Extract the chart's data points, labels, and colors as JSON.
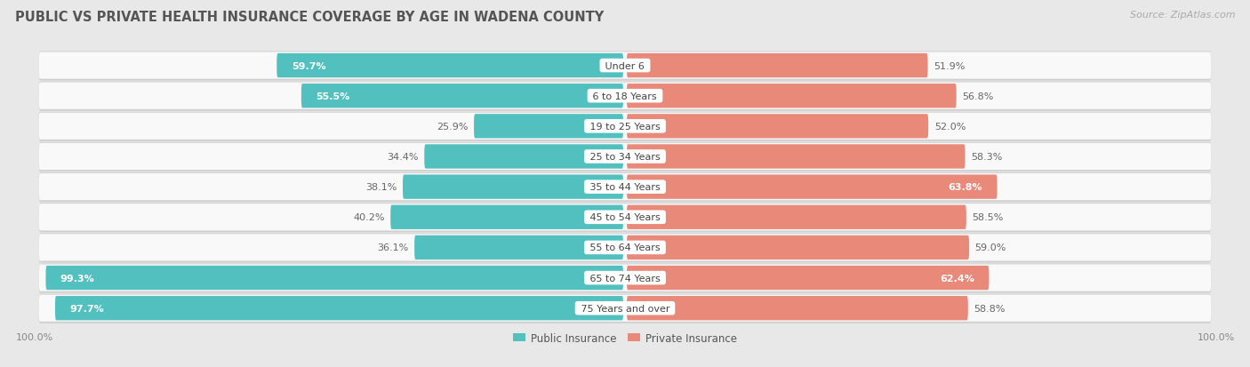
{
  "title": "PUBLIC VS PRIVATE HEALTH INSURANCE COVERAGE BY AGE IN WADENA COUNTY",
  "source": "Source: ZipAtlas.com",
  "categories": [
    "Under 6",
    "6 to 18 Years",
    "19 to 25 Years",
    "25 to 34 Years",
    "35 to 44 Years",
    "45 to 54 Years",
    "55 to 64 Years",
    "65 to 74 Years",
    "75 Years and over"
  ],
  "public_values": [
    59.7,
    55.5,
    25.9,
    34.4,
    38.1,
    40.2,
    36.1,
    99.3,
    97.7
  ],
  "private_values": [
    51.9,
    56.8,
    52.0,
    58.3,
    63.8,
    58.5,
    59.0,
    62.4,
    58.8
  ],
  "public_color": "#53c0c0",
  "private_color": "#e8897a",
  "public_label": "Public Insurance",
  "private_label": "Private Insurance",
  "bg_color": "#e8e8e8",
  "bar_bg_color": "#f9f9f9",
  "bar_shadow_color": "#d0d0d0",
  "label_color_dark": "#666666",
  "label_color_light": "#ffffff",
  "title_color": "#555555",
  "source_color": "#aaaaaa",
  "max_val": 100.0,
  "title_fontsize": 10.5,
  "source_fontsize": 8,
  "label_fontsize": 8,
  "category_fontsize": 8,
  "legend_fontsize": 8.5,
  "axis_label_fontsize": 8,
  "private_high_threshold": 60,
  "public_high_threshold": 50
}
